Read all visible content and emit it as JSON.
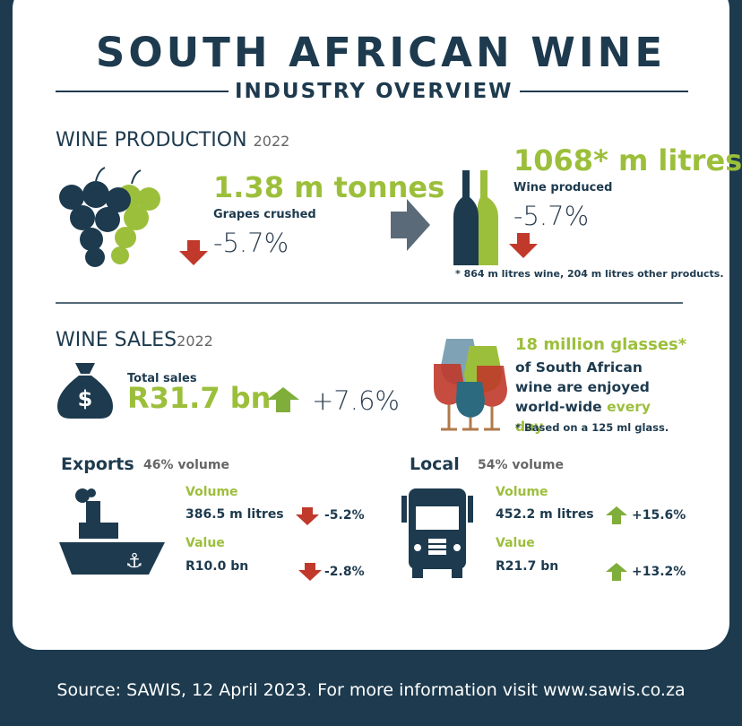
{
  "header": {
    "title": "SOUTH AFRICAN WINE",
    "subtitle": "INDUSTRY OVERVIEW"
  },
  "production": {
    "heading": "WINE PRODUCTION",
    "year": "2022",
    "grapes": {
      "value": "1.38 m tonnes",
      "label": "Grapes crushed",
      "change": "-5.7%"
    },
    "wine": {
      "value": "1068* m litres",
      "label": "Wine produced",
      "change": "-5.7%",
      "note": "* 864 m litres wine, 204 m litres other products."
    }
  },
  "sales": {
    "heading": "WINE SALES",
    "year": "2022",
    "label": "Total sales",
    "value": "R31.7 bn",
    "change": "+7.6%",
    "glasses": {
      "headline": "18 million glasses*",
      "text": "of South African wine are enjoyed world-wide",
      "highlight": "every day",
      "note": "* Based on a 125 ml glass."
    }
  },
  "exports": {
    "title": "Exports",
    "share": "46% volume",
    "volume_label": "Volume",
    "volume": "386.5 m litres",
    "volume_change": "-5.2%",
    "value_label": "Value",
    "value": "R10.0 bn",
    "value_change": "-2.8%"
  },
  "local": {
    "title": "Local",
    "share": "54% volume",
    "volume_label": "Volume",
    "volume": "452.2 m litres",
    "volume_change": "+15.6%",
    "value_label": "Value",
    "value": "R21.7 bn",
    "value_change": "+13.2%"
  },
  "footer": {
    "source": "Source: SAWIS, 12 April 2023. For more information visit www.sawis.co.za"
  }
}
